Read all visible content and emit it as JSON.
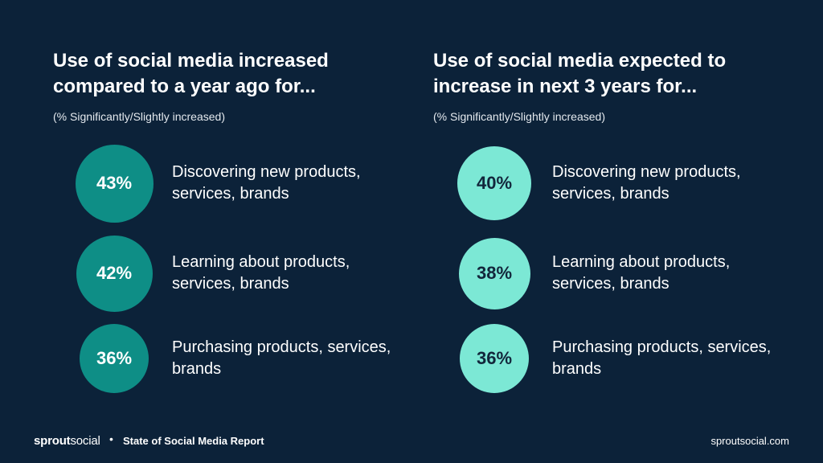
{
  "colors": {
    "background": "#0c2239",
    "left_bubble": "#0e8e86",
    "right_bubble": "#7ce8d5"
  },
  "chart_data": [
    {
      "type": "bubble-stat",
      "title": "Use of social media increased compared to a year ago for...",
      "subtitle": "(% Significantly/Slightly increased)",
      "categories": [
        "Discovering new products, services, brands",
        "Learning about products, services, brands",
        "Purchasing products, services, brands"
      ],
      "values": [
        43,
        42,
        36
      ],
      "value_labels": [
        "43%",
        "42%",
        "36%"
      ]
    },
    {
      "type": "bubble-stat",
      "title": "Use of social media expected to increase in next 3 years for...",
      "subtitle": "(% Significantly/Slightly increased)",
      "categories": [
        "Discovering new products, services, brands",
        "Learning about products, services, brands",
        "Purchasing products, services, brands"
      ],
      "values": [
        40,
        38,
        36
      ],
      "value_labels": [
        "40%",
        "38%",
        "36%"
      ]
    }
  ],
  "footer": {
    "logo_bold": "sprout",
    "logo_light": "social",
    "separator": "•",
    "report": "State of Social Media Report",
    "site": "sproutsocial.com"
  }
}
